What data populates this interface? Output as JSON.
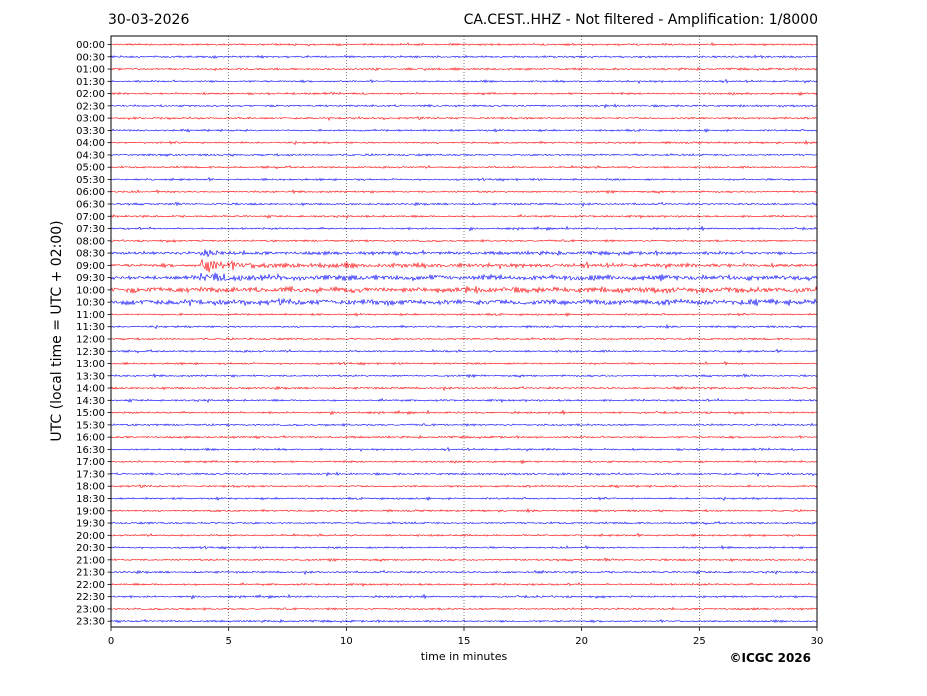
{
  "header": {
    "date": "30-03-2026",
    "title": "CA.CEST..HHZ - Not filtered - Amplification: 1/8000"
  },
  "footer": {
    "copyright": "©ICGC 2026"
  },
  "chart_data": {
    "type": "line",
    "xlabel": "time in minutes",
    "ylabel": "UTC (local time = UTC + 02:00)",
    "xlim": [
      0,
      30
    ],
    "x_ticks": [
      "0",
      "5",
      "10",
      "15",
      "20",
      "25",
      "30"
    ],
    "rows": [
      "00:00",
      "00:30",
      "01:00",
      "01:30",
      "02:00",
      "02:30",
      "03:00",
      "03:30",
      "04:00",
      "04:30",
      "05:00",
      "05:30",
      "06:00",
      "06:30",
      "07:00",
      "07:30",
      "08:00",
      "08:30",
      "09:00",
      "09:30",
      "10:00",
      "10:30",
      "11:00",
      "11:30",
      "12:00",
      "12:30",
      "13:00",
      "13:30",
      "14:00",
      "14:30",
      "15:00",
      "15:30",
      "16:00",
      "16:30",
      "17:00",
      "17:30",
      "18:00",
      "18:30",
      "19:00",
      "19:30",
      "20:00",
      "20:30",
      "21:00",
      "21:30",
      "22:00",
      "22:30",
      "23:00",
      "23:30"
    ],
    "trace_colors": [
      "#ff0000",
      "#0000ff"
    ],
    "vertical_grid_at": [
      5,
      10,
      15,
      20,
      25
    ],
    "event": {
      "row": "09:00",
      "onset_minute": 3.8
    }
  }
}
